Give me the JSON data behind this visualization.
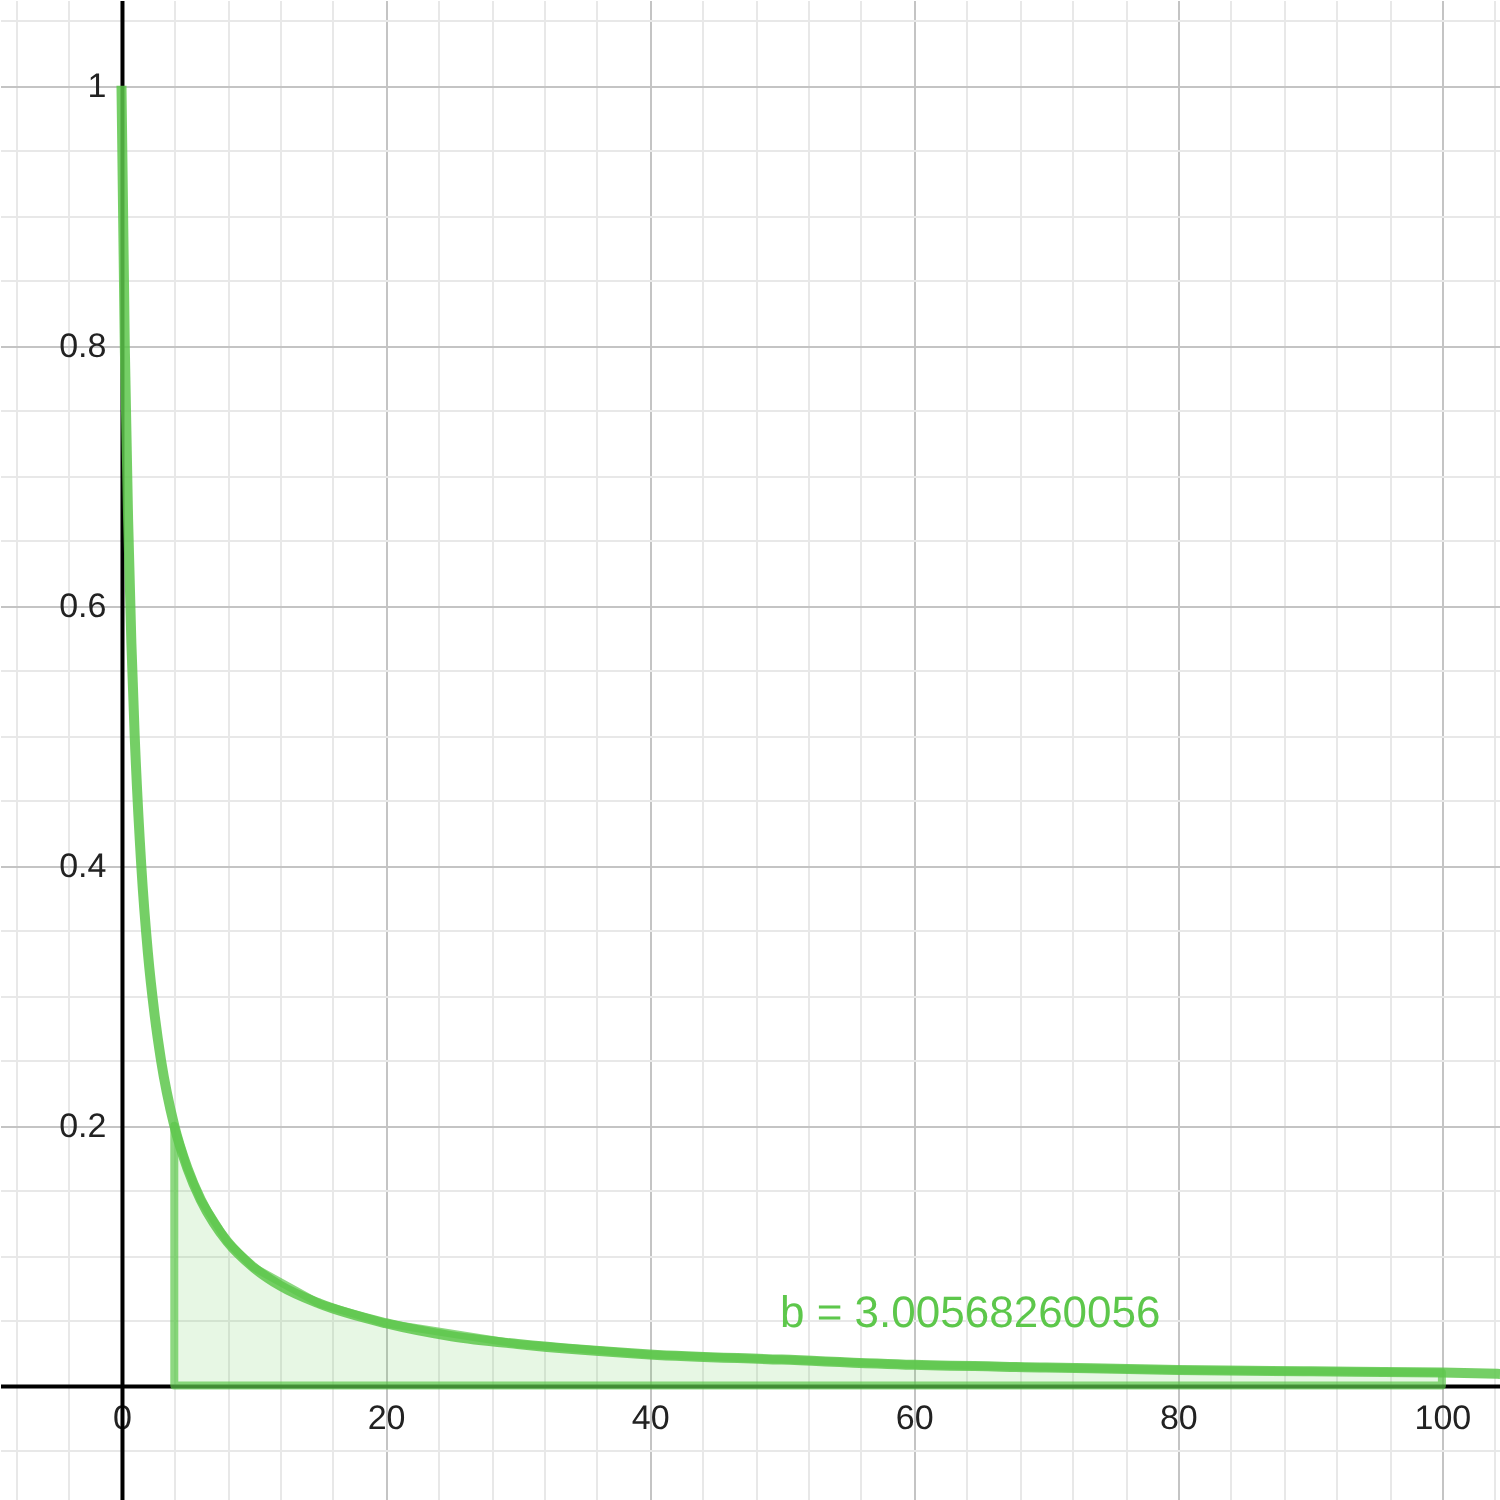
{
  "chart_data": {
    "type": "line",
    "xlim": [
      -9.2,
      104.4
    ],
    "ylim": [
      -0.088,
      1.066
    ],
    "xticks": [
      {
        "value": -8,
        "label": null
      },
      {
        "value": -4,
        "label": null
      },
      0,
      {
        "value": 4,
        "label": null
      },
      {
        "value": 8,
        "label": null
      },
      {
        "value": 12,
        "label": null
      },
      {
        "value": 16,
        "label": null
      },
      20,
      {
        "value": 24,
        "label": null
      },
      {
        "value": 28,
        "label": null
      },
      {
        "value": 32,
        "label": null
      },
      {
        "value": 36,
        "label": null
      },
      40,
      {
        "value": 44,
        "label": null
      },
      {
        "value": 48,
        "label": null
      },
      {
        "value": 52,
        "label": null
      },
      {
        "value": 56,
        "label": null
      },
      60,
      {
        "value": 64,
        "label": null
      },
      {
        "value": 68,
        "label": null
      },
      {
        "value": 72,
        "label": null
      },
      {
        "value": 76,
        "label": null
      },
      80,
      {
        "value": 84,
        "label": null
      },
      {
        "value": 88,
        "label": null
      },
      {
        "value": 92,
        "label": null
      },
      {
        "value": 96,
        "label": null
      },
      100,
      {
        "value": 104,
        "label": null
      }
    ],
    "yticks": [
      {
        "value": -0.05,
        "label": null
      },
      {
        "value": 0,
        "label": null
      },
      {
        "value": 0.05,
        "label": null
      },
      {
        "value": 0.1,
        "label": null
      },
      {
        "value": 0.15,
        "label": null
      },
      0.2,
      {
        "value": 0.25,
        "label": null
      },
      {
        "value": 0.3,
        "label": null
      },
      {
        "value": 0.35,
        "label": null
      },
      0.4,
      {
        "value": 0.45,
        "label": null
      },
      {
        "value": 0.5,
        "label": null
      },
      {
        "value": 0.55,
        "label": null
      },
      0.6,
      {
        "value": 0.65,
        "label": null
      },
      {
        "value": 0.7,
        "label": null
      },
      {
        "value": 0.75,
        "label": null
      },
      0.8,
      {
        "value": 0.85,
        "label": null
      },
      {
        "value": 0.9,
        "label": null
      },
      {
        "value": 0.95,
        "label": null
      },
      1,
      {
        "value": 1.05,
        "label": null
      }
    ],
    "grid": true,
    "annotations": [
      "b = 3.00568260056"
    ],
    "series": [
      {
        "type": "area",
        "color": "#5dc74b",
        "x": [
          4,
          5,
          6,
          8,
          10,
          15,
          20,
          30,
          40,
          50,
          60,
          70,
          80,
          90,
          100
        ],
        "values": [
          0.2,
          0.167,
          0.143,
          0.111,
          0.091,
          0.063,
          0.048,
          0.032,
          0.024,
          0.02,
          0.016,
          0.014,
          0.012,
          0.011,
          0.01
        ]
      },
      {
        "type": "line",
        "color": "#5dc74b",
        "x": [
          0,
          0.25,
          0.5,
          0.75,
          1,
          1.5,
          2,
          2.5,
          3,
          4,
          5,
          6,
          7,
          8,
          10,
          12,
          15,
          20,
          25,
          30,
          40,
          50,
          60,
          70,
          80,
          90,
          100,
          104.4
        ],
        "values": [
          1,
          0.8,
          0.667,
          0.571,
          0.5,
          0.4,
          0.333,
          0.286,
          0.25,
          0.2,
          0.167,
          0.143,
          0.125,
          0.111,
          0.091,
          0.077,
          0.063,
          0.048,
          0.038,
          0.032,
          0.024,
          0.02,
          0.016,
          0.014,
          0.012,
          0.011,
          0.01,
          0.009
        ]
      }
    ]
  }
}
